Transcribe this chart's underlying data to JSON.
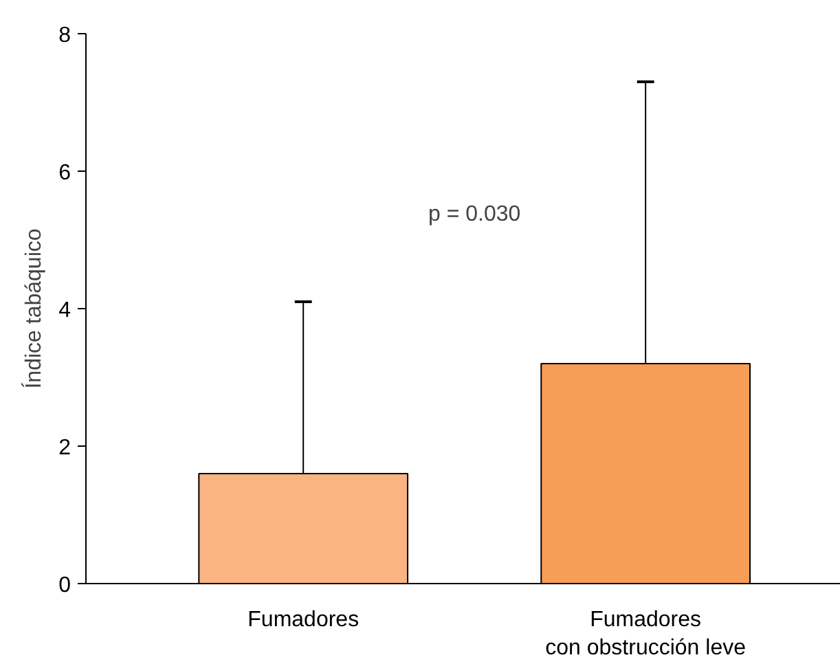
{
  "chart_data": {
    "type": "bar",
    "ylabel": "Índice tabáquico",
    "categories": [
      "Fumadores",
      "Fumadores\ncon obstrucción leve"
    ],
    "values": [
      1.6,
      3.2
    ],
    "colors": [
      "#f9b482",
      "#f79d56"
    ],
    "errors": [
      [
        1.6,
        4.1
      ],
      [
        3.2,
        7.3
      ]
    ],
    "ylim": [
      0,
      8
    ],
    "yticks": [
      0,
      2,
      4,
      6,
      8
    ],
    "grid": false,
    "annotations": [
      "p = 0.030"
    ]
  }
}
